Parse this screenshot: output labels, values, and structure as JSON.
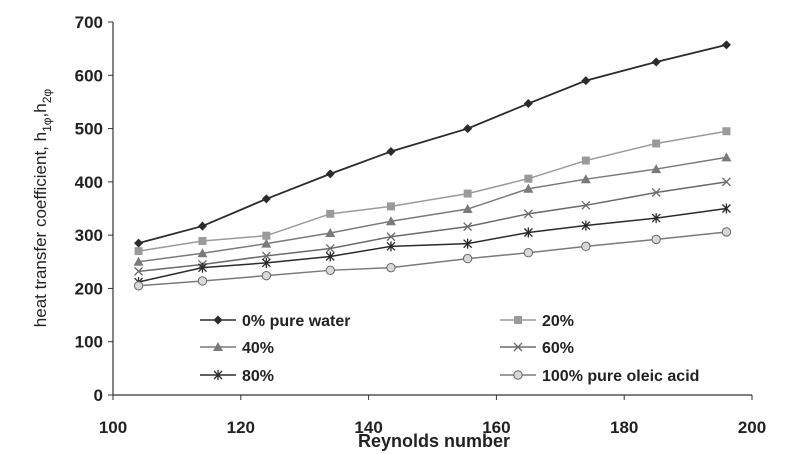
{
  "chart_data": {
    "type": "line",
    "xlabel": "Reynolds number",
    "ylabel": {
      "base": "heat transfer coefficient, h",
      "sub1": "1φ",
      "sep": ",h",
      "sub2": "2φ"
    },
    "xlim": [
      100,
      200
    ],
    "ylim": [
      0,
      700
    ],
    "xticks": [
      100,
      120,
      140,
      160,
      180,
      200
    ],
    "yticks": [
      0,
      100,
      200,
      300,
      400,
      500,
      600,
      700
    ],
    "grid": false,
    "legend_position": "bottom-center",
    "series": [
      {
        "name": "0% pure water",
        "marker": "diamond",
        "color": "#2b2b2b",
        "x": [
          104,
          114,
          124,
          134,
          143.5,
          155.5,
          165,
          174,
          185,
          196
        ],
        "y": [
          285,
          317,
          368,
          415,
          457,
          500,
          547,
          590,
          625,
          657
        ]
      },
      {
        "name": "20%",
        "marker": "square",
        "color": "#9a9a9a",
        "x": [
          104,
          114,
          124,
          134,
          143.5,
          155.5,
          165,
          174,
          185,
          196
        ],
        "y": [
          270,
          289,
          299,
          340,
          354,
          378,
          406,
          440,
          472,
          495
        ]
      },
      {
        "name": "40%",
        "marker": "triangle",
        "color": "#7a7a7a",
        "x": [
          104,
          114,
          124,
          134,
          143.5,
          155.5,
          165,
          174,
          185,
          196
        ],
        "y": [
          250,
          266,
          284,
          304,
          326,
          349,
          387,
          405,
          424,
          446
        ]
      },
      {
        "name": "60%",
        "marker": "x",
        "color": "#6a6a6a",
        "x": [
          104,
          114,
          124,
          134,
          143.5,
          155.5,
          165,
          174,
          185,
          196
        ],
        "y": [
          232,
          245,
          261,
          275,
          297,
          316,
          340,
          356,
          380,
          400
        ]
      },
      {
        "name": "80%",
        "marker": "star",
        "color": "#2b2b2b",
        "x": [
          104,
          114,
          124,
          134,
          143.5,
          155.5,
          165,
          174,
          185,
          196
        ],
        "y": [
          212,
          239,
          248,
          260,
          279,
          284,
          305,
          318,
          332,
          350
        ]
      },
      {
        "name": "100% pure oleic acid",
        "marker": "circle",
        "color": "#7a7a7a",
        "x": [
          104,
          114,
          124,
          134,
          143.5,
          155.5,
          165,
          174,
          185,
          196
        ],
        "y": [
          205,
          214,
          224,
          234,
          239,
          256,
          267,
          279,
          292,
          306
        ]
      }
    ]
  }
}
